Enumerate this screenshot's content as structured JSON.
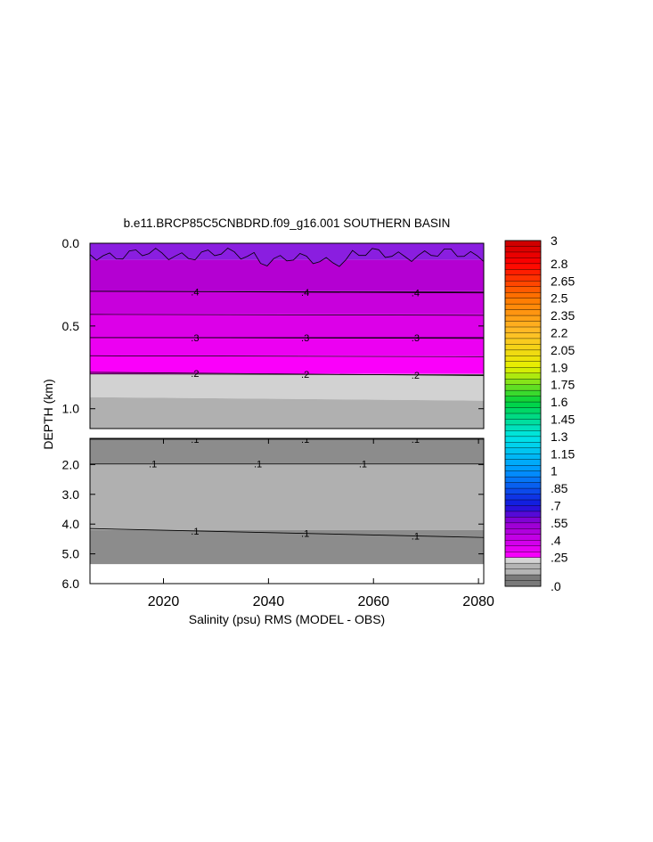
{
  "chart_data": {
    "type": "contour",
    "title": "b.e11.BRCP85C5CNBDRD.f09_g16.001 SOUTHERN BASIN",
    "xlabel": "Salinity (psu) RMS (MODEL - OBS)",
    "ylabel": "DEPTH (km)",
    "xlim": [
      2006,
      2081
    ],
    "x_ticks": [
      "2020",
      "2040",
      "2060",
      "2080"
    ],
    "x_tick_values": [
      2020,
      2040,
      2060,
      2080
    ],
    "panels": [
      {
        "name": "upper",
        "ylim": [
          0.0,
          1.12
        ],
        "y_ticks": [
          "0.0",
          "0.5",
          "1.0"
        ],
        "y_tick_values": [
          0.0,
          0.5,
          1.0
        ],
        "bands": [
          {
            "from": 0.0,
            "to": 0.1,
            "color": "#8a1ee0"
          },
          {
            "from": 0.1,
            "to": 0.29,
            "color": "#b400d2"
          },
          {
            "from": 0.29,
            "to": 0.43,
            "color": "#c800dc"
          },
          {
            "from": 0.43,
            "to": 0.57,
            "color": "#dc00e8"
          },
          {
            "from": 0.57,
            "to": 0.68,
            "color": "#ec00f2"
          },
          {
            "from": 0.68,
            "to": 0.79,
            "color": "#fa00fa"
          },
          {
            "from": 0.79,
            "to": 0.93,
            "color": "#d2d2d2"
          },
          {
            "from": 0.93,
            "to": 1.12,
            "color": "#b0b0b0"
          }
        ],
        "contours": [
          {
            "level": ".4",
            "depth_start": 0.29,
            "depth_end": 0.3
          },
          {
            "level": ".3",
            "depth_start": 0.57,
            "depth_end": 0.57
          },
          {
            "level": ".2",
            "depth_start": 0.78,
            "depth_end": 0.8
          }
        ]
      },
      {
        "name": "lower",
        "ylim": [
          1.12,
          6.0
        ],
        "y_ticks": [
          "2.0",
          "3.0",
          "4.0",
          "5.0",
          "6.0"
        ],
        "y_tick_values": [
          2.0,
          3.0,
          4.0,
          5.0,
          6.0
        ],
        "bottom_depth": 5.35,
        "bands": [
          {
            "from": 1.12,
            "to": 1.98,
            "color": "#8c8c8c"
          },
          {
            "from": 1.98,
            "to": 4.2,
            "color": "#b0b0b0"
          },
          {
            "from": 4.2,
            "to": 5.35,
            "color": "#8c8c8c"
          }
        ],
        "contours": [
          {
            "level": ".1",
            "depth_start": 1.15,
            "depth_end": 1.15
          },
          {
            "level": ".1",
            "depth_start": 1.98,
            "depth_end": 1.98
          },
          {
            "level": ".1",
            "depth_start": 4.15,
            "depth_end": 4.45
          }
        ]
      }
    ],
    "colorbar": {
      "labels": [
        "3",
        "2.8",
        "2.65",
        "2.5",
        "2.35",
        "2.2",
        "2.05",
        "1.9",
        "1.75",
        "1.6",
        "1.45",
        "1.3",
        "1.15",
        "1",
        ".85",
        ".7",
        ".55",
        ".4",
        ".25",
        ".0"
      ],
      "min": 0.0,
      "max": 3.0,
      "levels": 60
    }
  }
}
